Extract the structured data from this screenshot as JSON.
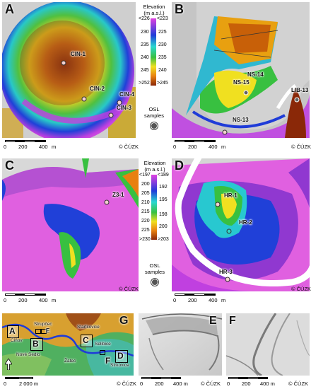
{
  "panels": {
    "A": {
      "letter": "A",
      "samples": [
        "CIN-1",
        "CIN-2",
        "CIN-4",
        "CIN-3"
      ],
      "scale": {
        "t0": "0",
        "t1": "200",
        "t2": "400",
        "unit": "m"
      },
      "copyright": "© ČÚZK"
    },
    "B": {
      "letter": "B",
      "samples": [
        "NS-14",
        "NS-15",
        "LIB-13",
        "NS-13"
      ],
      "scale": {
        "t0": "0",
        "t1": "200",
        "t2": "400",
        "unit": "m"
      },
      "copyright": "© ČÚZK"
    },
    "C": {
      "letter": "C",
      "samples": [
        "Z3-1"
      ],
      "scale": {
        "t0": "0",
        "t1": "200",
        "t2": "400",
        "unit": "m"
      },
      "copyright": "© ČÚZK"
    },
    "D": {
      "letter": "D",
      "samples": [
        "HR-1",
        "HR-2",
        "HR-3"
      ],
      "scale": {
        "t0": "0",
        "t1": "200",
        "t2": "400",
        "unit": "m"
      },
      "copyright": "© ČÚZK"
    },
    "G": {
      "letter": "G",
      "boxes": [
        "A",
        "B",
        "C",
        "D",
        "E",
        "F"
      ],
      "places": [
        "Strupčec",
        "Čiňov",
        "Staňkovice",
        "Selibice",
        "Nové Sedlo",
        "Žatec",
        "Strkovice"
      ],
      "scale": {
        "t0": "0",
        "t1": "2 000 m"
      },
      "copyright": "© ČÚZK"
    },
    "E": {
      "letter": "E",
      "scale": {
        "t0": "0",
        "t1": "200",
        "t2": "400 m"
      },
      "copyright": "© ČÚZK"
    },
    "F": {
      "letter": "F",
      "scale": {
        "t0": "0",
        "t1": "200",
        "t2": "400 m"
      },
      "copyright": "© ČÚZK"
    }
  },
  "legend_top": {
    "title_line1": "Elevation",
    "title_line2": "(m a.s.l.)",
    "left_values": [
      "<226",
      "230",
      "235",
      "240",
      "245",
      ">252"
    ],
    "right_values": [
      "<223",
      "225",
      "230",
      "235",
      "240",
      ">245"
    ],
    "osl_line1": "OSL samples"
  },
  "legend_bottom": {
    "title_line1": "Elevation",
    "title_line2": "(m a.s.l.)",
    "left_values": [
      "<197",
      "200",
      "205",
      "210",
      "215",
      "220",
      "225",
      ">230"
    ],
    "right_values": [
      "<189",
      "192",
      "195",
      "198",
      "200",
      ">203"
    ],
    "osl_line1": "OSL samples"
  },
  "colors": {
    "ramp_low": "#e040e0",
    "ramp_blue": "#1f3cd8",
    "ramp_cyan": "#28d8d0",
    "ramp_green": "#38c040",
    "ramp_yellow": "#f0e020",
    "ramp_orange": "#e88010",
    "ramp_high": "#8a2808",
    "hillshade": "#d4d4d4",
    "river": "#ffffff"
  }
}
